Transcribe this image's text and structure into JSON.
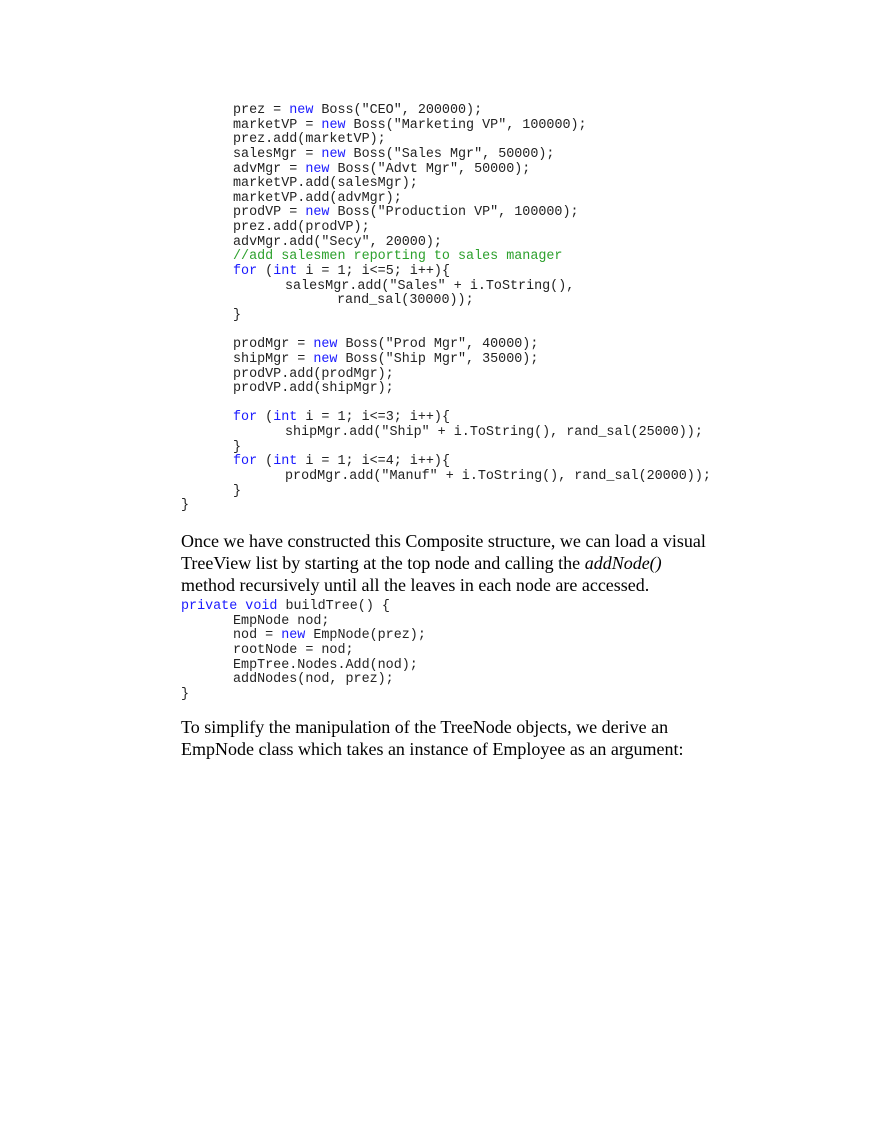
{
  "code_block_1": [
    {
      "indent": 1,
      "parts": [
        {
          "t": "prez = "
        },
        {
          "t": "new",
          "k": "kw"
        },
        {
          "t": " Boss(\"CEO\", 200000);"
        }
      ]
    },
    {
      "indent": 1,
      "parts": [
        {
          "t": "marketVP = "
        },
        {
          "t": "new",
          "k": "kw"
        },
        {
          "t": " Boss(\"Marketing VP\", 100000);"
        }
      ]
    },
    {
      "indent": 1,
      "parts": [
        {
          "t": "prez.add(marketVP);"
        }
      ]
    },
    {
      "indent": 1,
      "parts": [
        {
          "t": "salesMgr = "
        },
        {
          "t": "new",
          "k": "kw"
        },
        {
          "t": " Boss(\"Sales Mgr\", 50000);"
        }
      ]
    },
    {
      "indent": 1,
      "parts": [
        {
          "t": "advMgr = "
        },
        {
          "t": "new",
          "k": "kw"
        },
        {
          "t": " Boss(\"Advt Mgr\", 50000);"
        }
      ]
    },
    {
      "indent": 1,
      "parts": [
        {
          "t": "marketVP.add(salesMgr);"
        }
      ]
    },
    {
      "indent": 1,
      "parts": [
        {
          "t": "marketVP.add(advMgr);"
        }
      ]
    },
    {
      "indent": 1,
      "parts": [
        {
          "t": "prodVP = "
        },
        {
          "t": "new",
          "k": "kw"
        },
        {
          "t": " Boss(\"Production VP\", 100000);"
        }
      ]
    },
    {
      "indent": 1,
      "parts": [
        {
          "t": "prez.add(prodVP);"
        }
      ]
    },
    {
      "indent": 1,
      "parts": [
        {
          "t": "advMgr.add(\"Secy\", 20000);"
        }
      ]
    },
    {
      "indent": 1,
      "parts": [
        {
          "t": "//add salesmen reporting to sales manager",
          "k": "cm"
        }
      ]
    },
    {
      "indent": 1,
      "parts": [
        {
          "t": "for",
          "k": "kw"
        },
        {
          "t": " ("
        },
        {
          "t": "int",
          "k": "kw"
        },
        {
          "t": " i = 1; i<=5; i++){"
        }
      ]
    },
    {
      "indent": 2,
      "parts": [
        {
          "t": "salesMgr.add(\"Sales\" + i.ToString(),"
        }
      ]
    },
    {
      "indent": 3,
      "parts": [
        {
          "t": "rand_sal(30000));"
        }
      ]
    },
    {
      "indent": 1,
      "parts": [
        {
          "t": "}"
        }
      ]
    },
    {
      "indent": 0,
      "parts": []
    },
    {
      "indent": 1,
      "parts": [
        {
          "t": "prodMgr = "
        },
        {
          "t": "new",
          "k": "kw"
        },
        {
          "t": " Boss(\"Prod Mgr\", 40000);"
        }
      ]
    },
    {
      "indent": 1,
      "parts": [
        {
          "t": "shipMgr = "
        },
        {
          "t": "new",
          "k": "kw"
        },
        {
          "t": " Boss(\"Ship Mgr\", 35000);"
        }
      ]
    },
    {
      "indent": 1,
      "parts": [
        {
          "t": "prodVP.add(prodMgr);"
        }
      ]
    },
    {
      "indent": 1,
      "parts": [
        {
          "t": "prodVP.add(shipMgr);"
        }
      ]
    },
    {
      "indent": 0,
      "parts": []
    },
    {
      "indent": 1,
      "parts": [
        {
          "t": "for",
          "k": "kw"
        },
        {
          "t": " ("
        },
        {
          "t": "int",
          "k": "kw"
        },
        {
          "t": " i = 1; i<=3; i++){"
        }
      ]
    },
    {
      "indent": 2,
      "parts": [
        {
          "t": "shipMgr.add(\"Ship\" + i.ToString(), rand_sal(25000));"
        }
      ]
    },
    {
      "indent": 1,
      "parts": [
        {
          "t": "}"
        }
      ]
    },
    {
      "indent": 1,
      "parts": [
        {
          "t": "for",
          "k": "kw"
        },
        {
          "t": " ("
        },
        {
          "t": "int",
          "k": "kw"
        },
        {
          "t": " i = 1; i<=4; i++){"
        }
      ]
    },
    {
      "indent": 2,
      "parts": [
        {
          "t": "prodMgr.add(\"Manuf\" + i.ToString(), rand_sal(20000));"
        }
      ]
    },
    {
      "indent": 1,
      "parts": [
        {
          "t": "}"
        }
      ]
    },
    {
      "indent": 0,
      "parts": [
        {
          "t": "}"
        }
      ]
    }
  ],
  "paragraph_1": [
    [
      {
        "t": "Once we have constructed this Composite structure, we can load a visual"
      }
    ],
    [
      {
        "t": "TreeView list by starting at the top node and calling the "
      },
      {
        "t": "addNode()",
        "i": true
      }
    ],
    [
      {
        "t": "method recursively until all the leaves in each node are accessed."
      }
    ]
  ],
  "code_block_2": [
    {
      "indent": 0,
      "parts": [
        {
          "t": "private",
          "k": "kw"
        },
        {
          "t": " "
        },
        {
          "t": "void",
          "k": "kw"
        },
        {
          "t": " buildTree() {"
        }
      ]
    },
    {
      "indent": 1,
      "parts": [
        {
          "t": "EmpNode nod;"
        }
      ]
    },
    {
      "indent": 1,
      "parts": [
        {
          "t": "nod = "
        },
        {
          "t": "new",
          "k": "kw"
        },
        {
          "t": " EmpNode(prez);"
        }
      ]
    },
    {
      "indent": 1,
      "parts": [
        {
          "t": "rootNode = nod;"
        }
      ]
    },
    {
      "indent": 1,
      "parts": [
        {
          "t": "EmpTree.Nodes.Add(nod);"
        }
      ]
    },
    {
      "indent": 1,
      "parts": [
        {
          "t": "addNodes(nod, prez);"
        }
      ]
    },
    {
      "indent": 0,
      "parts": [
        {
          "t": "}"
        }
      ]
    }
  ],
  "paragraph_2": [
    [
      {
        "t": "To simplify the manipulation of the TreeNode objects, we derive an"
      }
    ],
    [
      {
        "t": "EmpNode class which takes an instance of Employee as an argument:"
      }
    ]
  ],
  "colors": {
    "keyword": "#1a1aff",
    "comment": "#2ca02c",
    "text": "#222222"
  }
}
